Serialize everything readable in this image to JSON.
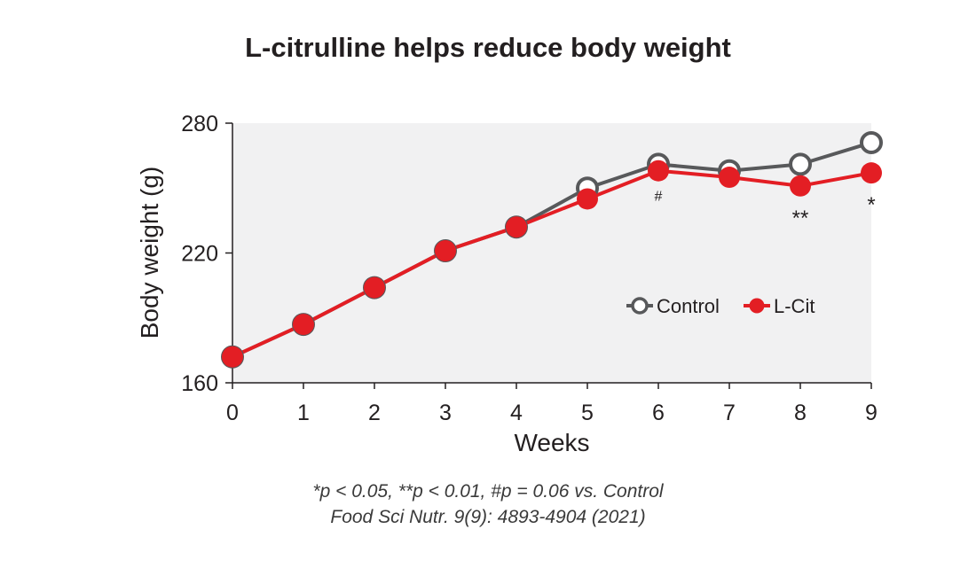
{
  "chart_data": {
    "type": "line",
    "title": "L-citrulline helps reduce body weight",
    "xlabel": "Weeks",
    "ylabel": "Body weight (g)",
    "x": [
      0,
      1,
      2,
      3,
      4,
      5,
      6,
      7,
      8,
      9
    ],
    "xlim": [
      0,
      9
    ],
    "ylim": [
      160,
      280
    ],
    "yticks": [
      160,
      220,
      280
    ],
    "grid": false,
    "legend_position": "center-right",
    "series": [
      {
        "name": "Control",
        "color": "#58595b",
        "marker": "open-circle",
        "values": [
          172,
          187,
          204,
          221,
          232,
          250,
          261,
          258,
          261,
          271
        ]
      },
      {
        "name": "L-Cit",
        "color": "#e31e24",
        "marker": "filled-circle",
        "values": [
          172,
          187,
          204,
          221,
          232,
          245,
          258,
          255,
          251,
          257
        ]
      }
    ],
    "annotations": [
      {
        "x": 6,
        "text": "#"
      },
      {
        "x": 8,
        "text": "**"
      },
      {
        "x": 9,
        "text": "*"
      }
    ],
    "plot_background": "#f1f1f2"
  },
  "footnotes": [
    "*p < 0.05, **p < 0.01, #p = 0.06 vs. Control",
    "Food Sci Nutr. 9(9): 4893-4904 (2021)"
  ]
}
